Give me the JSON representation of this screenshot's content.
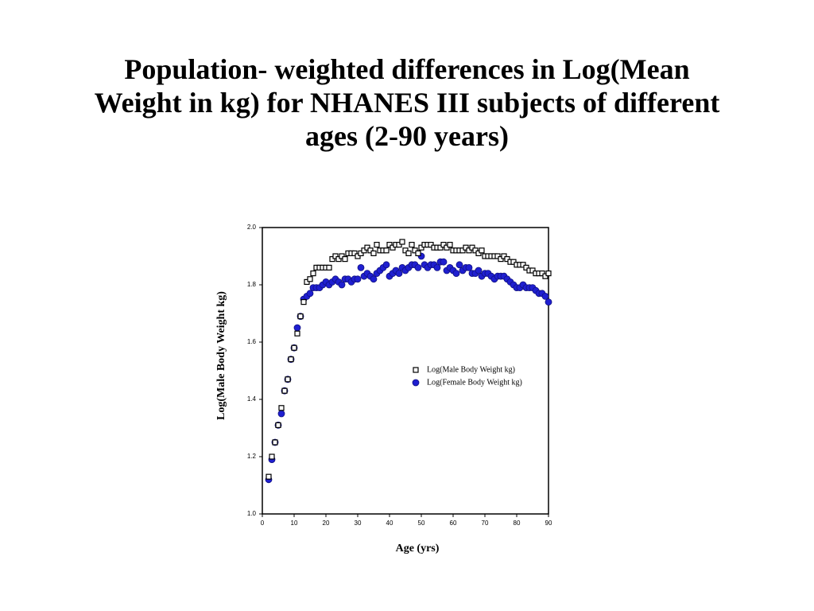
{
  "chart_data": {
    "type": "scatter",
    "title": "Population- weighted differences in Log(Mean Weight in kg) for NHANES III subjects of different ages (2-90 years)",
    "xlabel": "Age (yrs)",
    "ylabel": "Log(Male Body Weight kg)",
    "x": [
      2,
      3,
      4,
      5,
      6,
      7,
      8,
      9,
      10,
      11,
      12,
      13,
      14,
      15,
      16,
      17,
      18,
      19,
      20,
      21,
      22,
      23,
      24,
      25,
      26,
      27,
      28,
      29,
      30,
      31,
      32,
      33,
      34,
      35,
      36,
      37,
      38,
      39,
      40,
      41,
      42,
      43,
      44,
      45,
      46,
      47,
      48,
      49,
      50,
      51,
      52,
      53,
      54,
      55,
      56,
      57,
      58,
      59,
      60,
      61,
      62,
      63,
      64,
      65,
      66,
      67,
      68,
      69,
      70,
      71,
      72,
      73,
      74,
      75,
      76,
      77,
      78,
      79,
      80,
      81,
      82,
      83,
      84,
      85,
      86,
      87,
      88,
      89,
      90
    ],
    "series": [
      {
        "name": "Log(Male Body Weight kg)",
        "color": "#000000",
        "marker": "square",
        "values": [
          1.13,
          1.2,
          1.25,
          1.31,
          1.37,
          1.43,
          1.47,
          1.54,
          1.58,
          1.63,
          1.69,
          1.74,
          1.81,
          1.82,
          1.84,
          1.86,
          1.86,
          1.86,
          1.86,
          1.86,
          1.89,
          1.9,
          1.89,
          1.9,
          1.89,
          1.91,
          1.91,
          1.91,
          1.9,
          1.91,
          1.92,
          1.93,
          1.92,
          1.91,
          1.94,
          1.92,
          1.92,
          1.92,
          1.94,
          1.93,
          1.94,
          1.94,
          1.95,
          1.92,
          1.91,
          1.94,
          1.92,
          1.91,
          1.93,
          1.94,
          1.94,
          1.94,
          1.93,
          1.93,
          1.93,
          1.94,
          1.93,
          1.94,
          1.92,
          1.92,
          1.92,
          1.92,
          1.93,
          1.92,
          1.93,
          1.92,
          1.91,
          1.92,
          1.9,
          1.9,
          1.9,
          1.9,
          1.9,
          1.89,
          1.9,
          1.89,
          1.88,
          1.88,
          1.87,
          1.87,
          1.87,
          1.86,
          1.85,
          1.85,
          1.84,
          1.84,
          1.84,
          1.83,
          1.84
        ]
      },
      {
        "name": "Log(Female Body Weight kg)",
        "color": "#1f1fd0",
        "marker": "circle",
        "values": [
          1.12,
          1.19,
          1.25,
          1.31,
          1.35,
          1.43,
          1.47,
          1.54,
          1.58,
          1.65,
          1.69,
          1.75,
          1.76,
          1.77,
          1.79,
          1.79,
          1.79,
          1.8,
          1.81,
          1.8,
          1.81,
          1.82,
          1.81,
          1.8,
          1.82,
          1.82,
          1.81,
          1.82,
          1.82,
          1.86,
          1.83,
          1.84,
          1.83,
          1.82,
          1.84,
          1.85,
          1.86,
          1.87,
          1.83,
          1.84,
          1.85,
          1.84,
          1.86,
          1.85,
          1.86,
          1.87,
          1.87,
          1.86,
          1.9,
          1.87,
          1.86,
          1.87,
          1.87,
          1.86,
          1.88,
          1.88,
          1.85,
          1.86,
          1.85,
          1.84,
          1.87,
          1.85,
          1.86,
          1.86,
          1.84,
          1.84,
          1.85,
          1.83,
          1.84,
          1.84,
          1.83,
          1.82,
          1.83,
          1.83,
          1.83,
          1.82,
          1.81,
          1.8,
          1.79,
          1.79,
          1.8,
          1.79,
          1.79,
          1.79,
          1.78,
          1.77,
          1.77,
          1.76,
          1.74
        ]
      }
    ],
    "xlim": [
      0,
      90
    ],
    "xticks": [
      0,
      10,
      20,
      30,
      40,
      50,
      60,
      70,
      80,
      90
    ],
    "ylim": [
      1.0,
      2.0
    ],
    "yticks": [
      {
        "value": 1.0,
        "label": "1.0"
      },
      1.2,
      1.4,
      1.6,
      1.8,
      {
        "value": 2.0,
        "label": "2.0"
      }
    ]
  }
}
